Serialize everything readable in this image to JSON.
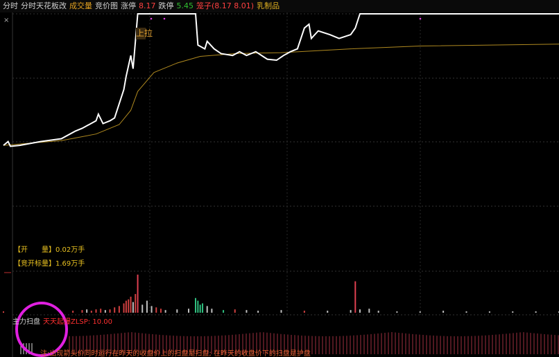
{
  "header": {
    "items": [
      {
        "text": "分时",
        "color": "#d0d0d0"
      },
      {
        "text": "分时天花板改",
        "color": "#d0d0d0"
      },
      {
        "text": "成交量",
        "color": "#e0a020"
      },
      {
        "text": "竞价图",
        "color": "#d0d0d0"
      },
      {
        "text": "涨停",
        "color": "#d0d0d0"
      },
      {
        "text": "8.17",
        "color": "#ff4040"
      },
      {
        "text": "跌停",
        "color": "#d0d0d0"
      },
      {
        "text": "5.45",
        "color": "#30c030"
      },
      {
        "text": "笼子(8.17 8.01)",
        "color": "#ff4040"
      },
      {
        "text": "乳制品",
        "color": "#e0b020"
      }
    ]
  },
  "annotation": "上拉",
  "price": {
    "xlim": [
      0,
      240
    ],
    "ylim": [
      5.45,
      8.17
    ],
    "x": [
      0,
      2,
      3,
      7,
      16,
      25,
      31,
      34,
      40,
      41,
      43,
      46,
      48,
      50,
      52,
      53,
      55,
      56,
      57,
      58,
      61,
      83,
      84,
      87,
      88,
      91,
      94,
      99,
      102,
      105,
      109,
      114,
      118,
      121,
      124,
      127,
      130,
      132,
      133,
      136,
      141,
      145,
      150,
      152,
      154,
      240
    ],
    "values": [
      6.78,
      6.82,
      6.77,
      6.78,
      6.82,
      6.85,
      6.93,
      6.96,
      7.04,
      7.11,
      7.01,
      7.04,
      7.07,
      7.22,
      7.37,
      7.51,
      7.73,
      7.59,
      7.88,
      8.17,
      8.17,
      8.17,
      7.84,
      7.8,
      7.88,
      7.8,
      7.75,
      7.73,
      7.77,
      7.73,
      7.77,
      7.69,
      7.68,
      7.73,
      7.77,
      7.8,
      8.02,
      8.06,
      7.91,
      7.99,
      7.95,
      7.91,
      7.95,
      8.02,
      8.17,
      8.17
    ],
    "color": "#ffffff"
  },
  "average": {
    "x": [
      0,
      10,
      25,
      40,
      50,
      55,
      58,
      65,
      75,
      85,
      100,
      120,
      150,
      180,
      240
    ],
    "values": [
      6.78,
      6.8,
      6.83,
      6.9,
      7.0,
      7.15,
      7.35,
      7.55,
      7.65,
      7.72,
      7.75,
      7.76,
      7.8,
      7.83,
      7.85
    ],
    "color": "#b08a20"
  },
  "labels": [
    "【开　　量】0.02万手",
    "【竞开标量】1.69万手"
  ],
  "volume": {
    "ylim": [
      0,
      60
    ],
    "x": [
      0,
      30,
      34,
      36,
      38,
      40,
      42,
      44,
      46,
      48,
      50,
      52,
      53,
      54,
      55,
      56,
      57,
      58,
      60,
      62,
      64,
      66,
      68,
      70,
      75,
      80,
      83,
      84,
      85,
      86,
      88,
      90,
      95,
      100,
      105,
      110,
      120,
      130,
      140,
      150,
      152,
      154,
      158,
      162,
      170,
      180,
      190,
      200,
      210,
      220,
      230,
      240
    ],
    "values": [
      2,
      3,
      4,
      5,
      3,
      5,
      6,
      4,
      5,
      8,
      10,
      14,
      18,
      20,
      24,
      16,
      28,
      57,
      12,
      18,
      10,
      8,
      6,
      4,
      5,
      6,
      22,
      18,
      12,
      14,
      10,
      6,
      4,
      5,
      4,
      3,
      4,
      3,
      3,
      4,
      47,
      5,
      6,
      3,
      2,
      2,
      3,
      2,
      2,
      2,
      2,
      2
    ],
    "colors": [
      "#d04040",
      "#d04040",
      "#d04040",
      "#c0c0c0",
      "#d04040",
      "#d04040",
      "#d04040",
      "#c0c0c0",
      "#d04040",
      "#d04040",
      "#d04040",
      "#d04040",
      "#d04040",
      "#d04040",
      "#d04040",
      "#c0c0c0",
      "#d04040",
      "#e04050",
      "#c0c0c0",
      "#c0c0c0",
      "#c0c0c0",
      "#d04040",
      "#d04040",
      "#c0c0c0",
      "#c0c0c0",
      "#c0c0c0",
      "#30c080",
      "#30c080",
      "#30c080",
      "#30c080",
      "#c0c0c0",
      "#c0c0c0",
      "#30c080",
      "#d04040",
      "#c0c0c0",
      "#c0c0c0",
      "#c0c0c0",
      "#d04040",
      "#c0c0c0",
      "#c0c0c0",
      "#e04050",
      "#c0c0c0",
      "#c0c0c0",
      "#c0c0c0",
      "#c0c0c0",
      "#c0c0c0",
      "#c0c0c0",
      "#c0c0c0",
      "#c0c0c0",
      "#c0c0c0",
      "#c0c0c0",
      "#c0c0c0"
    ]
  },
  "indicator": {
    "name": "主力扫盘",
    "value_text": "天天起爆ZLSP: 10.00",
    "note": "注:出现箭头价同时运行在昨天的收盘价上的扫盘是扫盘; 在昨天的收盘价下的扫盘是护盘"
  }
}
